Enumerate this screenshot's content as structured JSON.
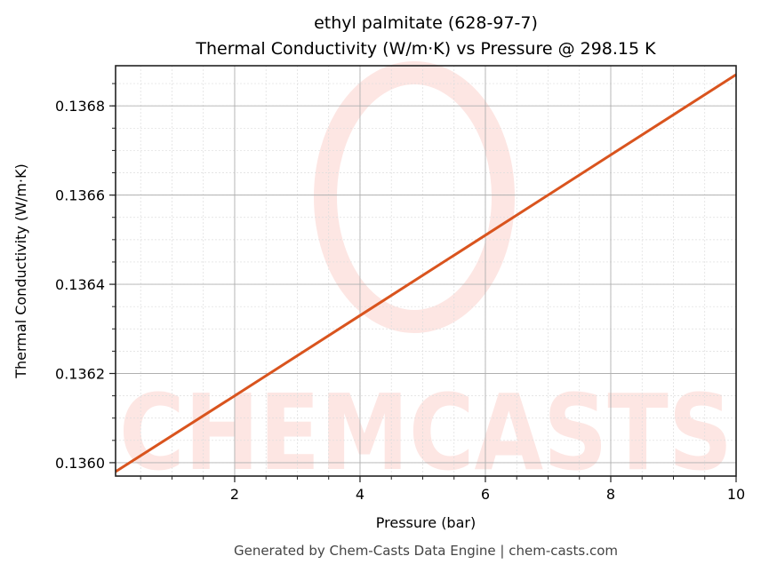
{
  "chart_data": {
    "type": "line",
    "title": "ethyl palmitate (628-97-7)",
    "subtitle": "Thermal Conductivity (W/m·K) vs Pressure @ 298.15 K",
    "xlabel": "Pressure (bar)",
    "ylabel": "Thermal Conductivity (W/m·K)",
    "xlim": [
      0.1,
      10
    ],
    "ylim": [
      0.13597,
      0.13689
    ],
    "x_ticks": [
      2,
      4,
      6,
      8,
      10
    ],
    "x_tick_labels": [
      "2",
      "4",
      "6",
      "8",
      "10"
    ],
    "y_ticks": [
      0.136,
      0.1362,
      0.1364,
      0.1366,
      0.1368
    ],
    "y_tick_labels": [
      "0.1360",
      "0.1362",
      "0.1364",
      "0.1366",
      "0.1368"
    ],
    "grid": true,
    "minor_grid": true,
    "legend": null,
    "series": [
      {
        "name": "Thermal Conductivity",
        "color": "#d9541e",
        "x": [
          0.1,
          2,
          4,
          6,
          8,
          10
        ],
        "values": [
          0.13598,
          0.13615,
          0.13633,
          0.13651,
          0.13669,
          0.13687
        ]
      }
    ]
  },
  "watermark": {
    "text": "CHEMCASTS",
    "color": "#fde6e3"
  },
  "footer": "Generated by Chem-Casts Data Engine | chem-casts.com"
}
